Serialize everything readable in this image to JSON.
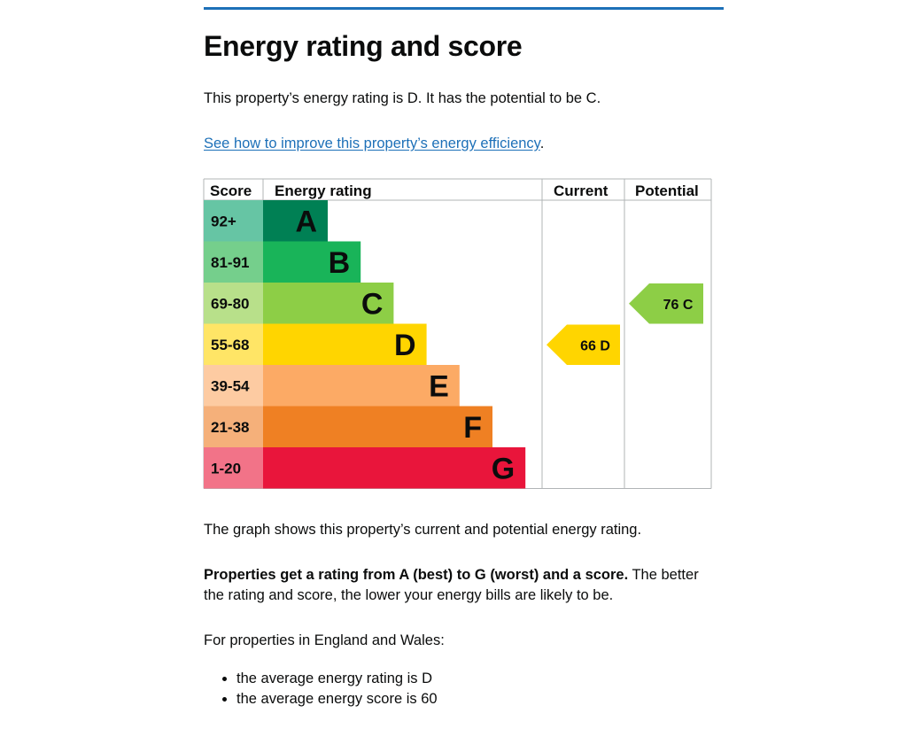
{
  "page": {
    "title": "Energy rating and score",
    "intro": "This property’s energy rating is D. It has the potential to be C.",
    "link_text": "See how to improve this property’s energy efficiency",
    "link_suffix": "."
  },
  "table": {
    "headers": {
      "score": "Score",
      "rating": "Energy rating",
      "current": "Current",
      "potential": "Potential"
    }
  },
  "chart_data": {
    "type": "table",
    "bands": [
      {
        "score": "92+",
        "letter": "A",
        "band_color": "#008054",
        "score_color": "#66c5a4"
      },
      {
        "score": "81-91",
        "letter": "B",
        "band_color": "#19b459",
        "score_color": "#75cf8c"
      },
      {
        "score": "69-80",
        "letter": "C",
        "band_color": "#8dce46",
        "score_color": "#b8e08a"
      },
      {
        "score": "55-68",
        "letter": "D",
        "band_color": "#ffd500",
        "score_color": "#ffe566"
      },
      {
        "score": "39-54",
        "letter": "E",
        "band_color": "#fcaa65",
        "score_color": "#fdcba2"
      },
      {
        "score": "21-38",
        "letter": "F",
        "band_color": "#ef8023",
        "score_color": "#f5b07a"
      },
      {
        "score": "1-20",
        "letter": "G",
        "band_color": "#e9153b",
        "score_color": "#f27388"
      }
    ],
    "current": {
      "score": 66,
      "letter": "D",
      "label": "66  D",
      "color": "#ffd500"
    },
    "potential": {
      "score": 76,
      "letter": "C",
      "label": "76  C",
      "color": "#8dce46"
    }
  },
  "body": {
    "graph_note": "The graph shows this property’s current and potential energy rating.",
    "rating_bold": "Properties get a rating from A (best) to G (worst) and a score.",
    "rating_rest": " The better the rating and score, the lower your energy bills are likely to be.",
    "england_wales": "For properties in England and Wales:",
    "bullets": [
      "the average energy rating is D",
      "the average energy score is 60"
    ]
  }
}
